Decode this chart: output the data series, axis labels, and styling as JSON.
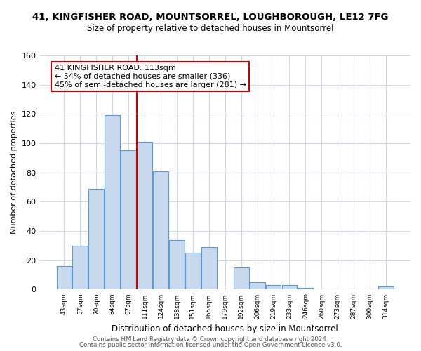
{
  "title_line1": "41, KINGFISHER ROAD, MOUNTSORREL, LOUGHBOROUGH, LE12 7FG",
  "title_line2": "Size of property relative to detached houses in Mountsorrel",
  "bar_labels": [
    "43sqm",
    "57sqm",
    "70sqm",
    "84sqm",
    "97sqm",
    "111sqm",
    "124sqm",
    "138sqm",
    "151sqm",
    "165sqm",
    "179sqm",
    "192sqm",
    "206sqm",
    "219sqm",
    "233sqm",
    "246sqm",
    "260sqm",
    "273sqm",
    "287sqm",
    "300sqm",
    "314sqm"
  ],
  "bar_values": [
    16,
    30,
    69,
    119,
    95,
    101,
    81,
    34,
    25,
    29,
    0,
    15,
    5,
    3,
    3,
    1,
    0,
    0,
    0,
    0,
    2
  ],
  "bar_color": "#c8d9ee",
  "bar_edge_color": "#5b9bd5",
  "vline_x_index": 4.5,
  "vline_color": "#cc0000",
  "ylim": [
    0,
    160
  ],
  "yticks": [
    0,
    20,
    40,
    60,
    80,
    100,
    120,
    140,
    160
  ],
  "ylabel": "Number of detached properties",
  "xlabel": "Distribution of detached houses by size in Mountsorrel",
  "annotation_title": "41 KINGFISHER ROAD: 113sqm",
  "annotation_line2": "← 54% of detached houses are smaller (336)",
  "annotation_line3": "45% of semi-detached houses are larger (281) →",
  "annotation_box_color": "#ffffff",
  "annotation_border_color": "#cc0000",
  "footer_line1": "Contains HM Land Registry data © Crown copyright and database right 2024.",
  "footer_line2": "Contains public sector information licensed under the Open Government Licence v3.0.",
  "background_color": "#ffffff",
  "plot_bg_color": "#ffffff",
  "grid_color": "#d0d8e8"
}
